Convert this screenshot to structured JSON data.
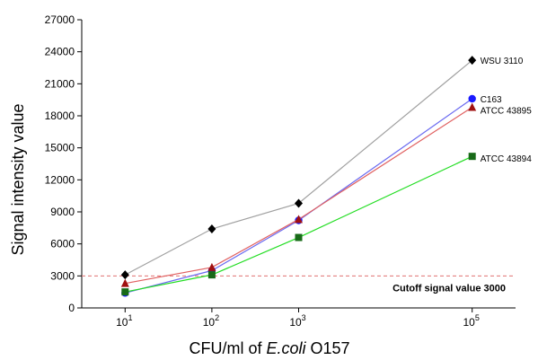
{
  "chart_data": {
    "type": "line",
    "title": "",
    "xlabel_prefix": "CFU/ml of ",
    "xlabel_italic": "E.coli",
    "xlabel_suffix": " O157",
    "ylabel": "Signal intensity value",
    "ylim": [
      0,
      27000
    ],
    "yticks": [
      0,
      3000,
      6000,
      9000,
      12000,
      15000,
      18000,
      21000,
      24000,
      27000
    ],
    "x_scale": "log10",
    "xlim": [
      0.5,
      5.5
    ],
    "x": [
      1,
      2,
      3,
      5
    ],
    "xtick_labels": [
      {
        "base": "10",
        "exp": "1"
      },
      {
        "base": "10",
        "exp": "2"
      },
      {
        "base": "10",
        "exp": "3"
      },
      {
        "base": "10",
        "exp": "5"
      }
    ],
    "grid": false,
    "legend": "inline-right",
    "series": [
      {
        "name": "WSU 3110",
        "color": "#a0a0a0",
        "marker": "diamond",
        "marker_color": "#000000",
        "values": [
          3100,
          7400,
          9800,
          23200
        ]
      },
      {
        "name": "C163",
        "color": "#6a6af0",
        "marker": "circle",
        "marker_color": "#1a1aff",
        "values": [
          1400,
          3500,
          8200,
          19600
        ]
      },
      {
        "name": "ATCC 43895",
        "color": "#e06060",
        "marker": "triangle",
        "marker_color": "#a01010",
        "values": [
          2300,
          3800,
          8300,
          18800
        ]
      },
      {
        "name": "ATCC 43894",
        "color": "#22dd22",
        "marker": "square",
        "marker_color": "#186a18",
        "values": [
          1500,
          3100,
          6600,
          14200
        ]
      }
    ],
    "cutoff": {
      "value": 3000,
      "label": "Cutoff signal value 3000",
      "color": "#e07070"
    }
  }
}
